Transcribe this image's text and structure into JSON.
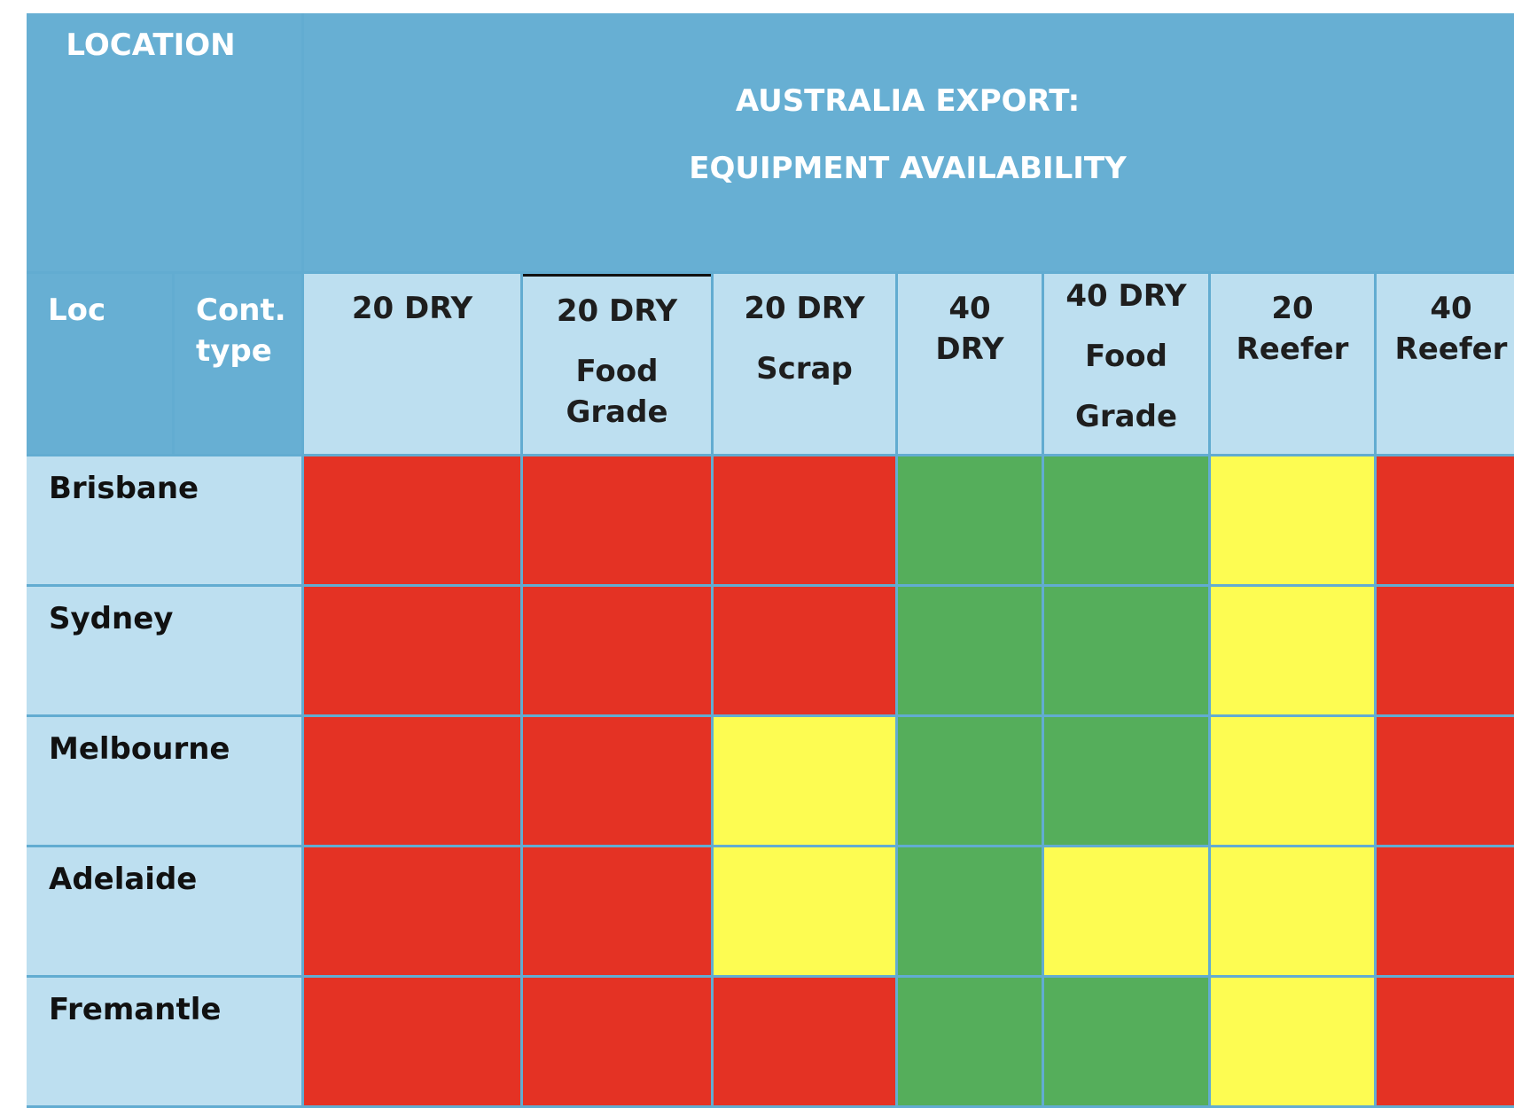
{
  "header": {
    "location": "LOCATION",
    "title_line1": "AUSTRALIA EXPORT:",
    "title_line2": "EQUIPMENT AVAILABILITY",
    "loc": "Loc",
    "cont_type_line1": "Cont.",
    "cont_type_line2": "type"
  },
  "columns": [
    [
      "20 DRY"
    ],
    [
      "20 DRY",
      "Food",
      "Grade"
    ],
    [
      "20 DRY",
      "Scrap"
    ],
    [
      "40",
      "DRY"
    ],
    [
      "40 DRY",
      "Food",
      "Grade"
    ],
    [
      "20",
      "Reefer"
    ],
    [
      "40",
      "Reefer"
    ]
  ],
  "rows": [
    {
      "location": "Brisbane",
      "status": [
        "red",
        "red",
        "red",
        "green",
        "green",
        "yellow",
        "red"
      ]
    },
    {
      "location": "Sydney",
      "status": [
        "red",
        "red",
        "red",
        "green",
        "green",
        "yellow",
        "red"
      ]
    },
    {
      "location": "Melbourne",
      "status": [
        "red",
        "red",
        "yellow",
        "green",
        "green",
        "yellow",
        "red"
      ]
    },
    {
      "location": "Adelaide",
      "status": [
        "red",
        "red",
        "yellow",
        "green",
        "yellow",
        "yellow",
        "red"
      ]
    },
    {
      "location": "Fremantle",
      "status": [
        "red",
        "red",
        "red",
        "green",
        "green",
        "yellow",
        "red"
      ]
    }
  ],
  "colors": {
    "red": "#e43224",
    "green": "#55ae5b",
    "yellow": "#fdfc52",
    "header_blue": "#67afd3",
    "light_blue": "#bddff0"
  }
}
